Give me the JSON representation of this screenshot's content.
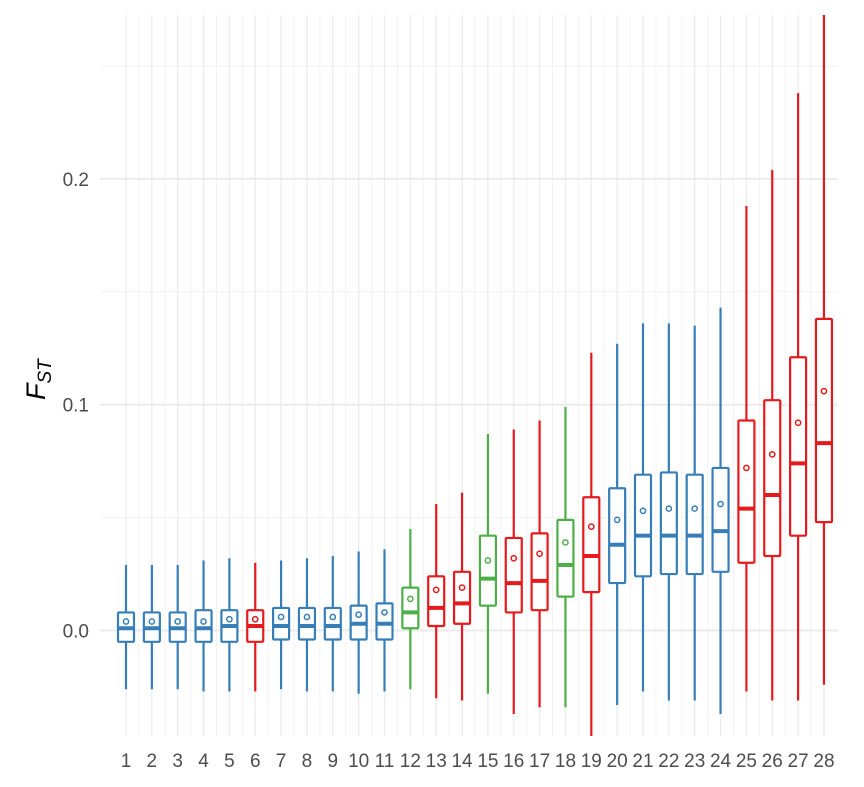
{
  "chart_data": {
    "type": "boxplot",
    "title": "",
    "xlabel": "",
    "ylabel": {
      "main": "F",
      "sub": "ST"
    },
    "ylim": [
      -0.047,
      0.273
    ],
    "yticks": [
      0.0,
      0.1,
      0.2
    ],
    "ytick_labels": [
      "0.0",
      "0.1",
      "0.2"
    ],
    "grid": true,
    "colors": {
      "blue": "#377eb8",
      "red": "#e41a1c",
      "green": "#4daf4a"
    },
    "categories": [
      "1",
      "2",
      "3",
      "4",
      "5",
      "6",
      "7",
      "8",
      "9",
      "10",
      "11",
      "12",
      "13",
      "14",
      "15",
      "16",
      "17",
      "18",
      "19",
      "20",
      "21",
      "22",
      "23",
      "24",
      "25",
      "26",
      "27",
      "28"
    ],
    "boxes": [
      {
        "color": "blue",
        "lower_whisker": -0.026,
        "q1": -0.005,
        "median": 0.001,
        "q3": 0.008,
        "upper_whisker": 0.029,
        "mean": 0.004
      },
      {
        "color": "blue",
        "lower_whisker": -0.026,
        "q1": -0.005,
        "median": 0.001,
        "q3": 0.008,
        "upper_whisker": 0.029,
        "mean": 0.004
      },
      {
        "color": "blue",
        "lower_whisker": -0.026,
        "q1": -0.005,
        "median": 0.001,
        "q3": 0.008,
        "upper_whisker": 0.029,
        "mean": 0.004
      },
      {
        "color": "blue",
        "lower_whisker": -0.027,
        "q1": -0.005,
        "median": 0.001,
        "q3": 0.009,
        "upper_whisker": 0.031,
        "mean": 0.004
      },
      {
        "color": "blue",
        "lower_whisker": -0.027,
        "q1": -0.005,
        "median": 0.002,
        "q3": 0.009,
        "upper_whisker": 0.032,
        "mean": 0.005
      },
      {
        "color": "red",
        "lower_whisker": -0.027,
        "q1": -0.005,
        "median": 0.002,
        "q3": 0.009,
        "upper_whisker": 0.03,
        "mean": 0.005
      },
      {
        "color": "blue",
        "lower_whisker": -0.026,
        "q1": -0.004,
        "median": 0.002,
        "q3": 0.01,
        "upper_whisker": 0.031,
        "mean": 0.006
      },
      {
        "color": "blue",
        "lower_whisker": -0.027,
        "q1": -0.004,
        "median": 0.002,
        "q3": 0.01,
        "upper_whisker": 0.032,
        "mean": 0.006
      },
      {
        "color": "blue",
        "lower_whisker": -0.027,
        "q1": -0.004,
        "median": 0.002,
        "q3": 0.01,
        "upper_whisker": 0.033,
        "mean": 0.006
      },
      {
        "color": "blue",
        "lower_whisker": -0.028,
        "q1": -0.004,
        "median": 0.003,
        "q3": 0.011,
        "upper_whisker": 0.035,
        "mean": 0.007
      },
      {
        "color": "blue",
        "lower_whisker": -0.027,
        "q1": -0.004,
        "median": 0.003,
        "q3": 0.012,
        "upper_whisker": 0.036,
        "mean": 0.008
      },
      {
        "color": "green",
        "lower_whisker": -0.026,
        "q1": 0.001,
        "median": 0.008,
        "q3": 0.019,
        "upper_whisker": 0.045,
        "mean": 0.014
      },
      {
        "color": "red",
        "lower_whisker": -0.03,
        "q1": 0.002,
        "median": 0.01,
        "q3": 0.024,
        "upper_whisker": 0.056,
        "mean": 0.018
      },
      {
        "color": "red",
        "lower_whisker": -0.031,
        "q1": 0.003,
        "median": 0.012,
        "q3": 0.026,
        "upper_whisker": 0.061,
        "mean": 0.019
      },
      {
        "color": "green",
        "lower_whisker": -0.028,
        "q1": 0.011,
        "median": 0.023,
        "q3": 0.042,
        "upper_whisker": 0.087,
        "mean": 0.031
      },
      {
        "color": "red",
        "lower_whisker": -0.037,
        "q1": 0.008,
        "median": 0.021,
        "q3": 0.041,
        "upper_whisker": 0.089,
        "mean": 0.032
      },
      {
        "color": "red",
        "lower_whisker": -0.034,
        "q1": 0.009,
        "median": 0.022,
        "q3": 0.043,
        "upper_whisker": 0.093,
        "mean": 0.034
      },
      {
        "color": "green",
        "lower_whisker": -0.034,
        "q1": 0.015,
        "median": 0.029,
        "q3": 0.049,
        "upper_whisker": 0.099,
        "mean": 0.039
      },
      {
        "color": "red",
        "lower_whisker": -0.047,
        "q1": 0.017,
        "median": 0.033,
        "q3": 0.059,
        "upper_whisker": 0.123,
        "mean": 0.046
      },
      {
        "color": "blue",
        "lower_whisker": -0.033,
        "q1": 0.021,
        "median": 0.038,
        "q3": 0.063,
        "upper_whisker": 0.127,
        "mean": 0.049
      },
      {
        "color": "blue",
        "lower_whisker": -0.027,
        "q1": 0.024,
        "median": 0.042,
        "q3": 0.069,
        "upper_whisker": 0.136,
        "mean": 0.053
      },
      {
        "color": "blue",
        "lower_whisker": -0.031,
        "q1": 0.025,
        "median": 0.042,
        "q3": 0.07,
        "upper_whisker": 0.136,
        "mean": 0.054
      },
      {
        "color": "blue",
        "lower_whisker": -0.031,
        "q1": 0.025,
        "median": 0.042,
        "q3": 0.069,
        "upper_whisker": 0.135,
        "mean": 0.054
      },
      {
        "color": "blue",
        "lower_whisker": -0.037,
        "q1": 0.026,
        "median": 0.044,
        "q3": 0.072,
        "upper_whisker": 0.143,
        "mean": 0.056
      },
      {
        "color": "red",
        "lower_whisker": -0.027,
        "q1": 0.03,
        "median": 0.054,
        "q3": 0.093,
        "upper_whisker": 0.188,
        "mean": 0.072
      },
      {
        "color": "red",
        "lower_whisker": -0.031,
        "q1": 0.033,
        "median": 0.06,
        "q3": 0.102,
        "upper_whisker": 0.204,
        "mean": 0.078
      },
      {
        "color": "red",
        "lower_whisker": -0.031,
        "q1": 0.042,
        "median": 0.074,
        "q3": 0.121,
        "upper_whisker": 0.238,
        "mean": 0.092
      },
      {
        "color": "red",
        "lower_whisker": -0.024,
        "q1": 0.048,
        "median": 0.083,
        "q3": 0.138,
        "upper_whisker": 0.273,
        "mean": 0.106
      }
    ]
  }
}
